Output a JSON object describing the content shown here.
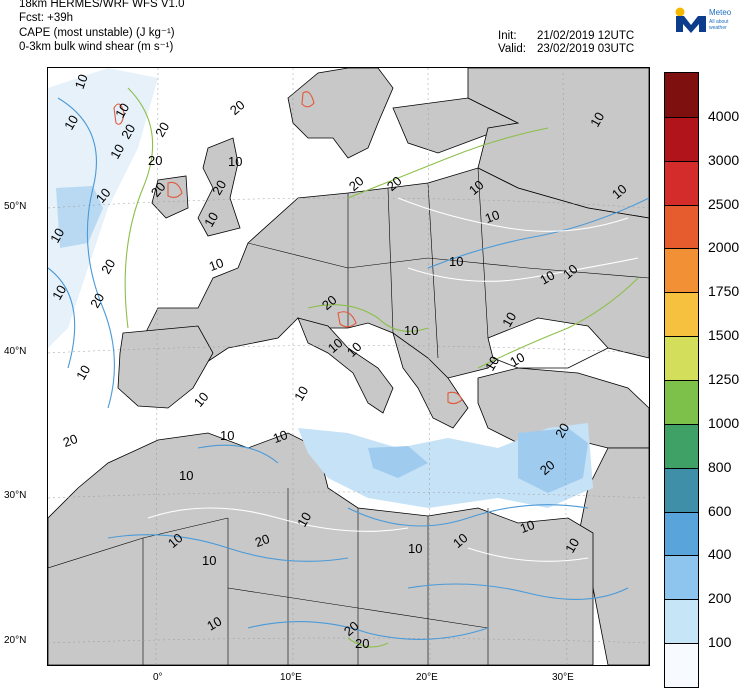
{
  "header": {
    "model": "18km HERMES/WRF WFS V1.0",
    "forecast": "Fcst: +39h",
    "field1": "CAPE (most unstable) (J kg⁻¹)",
    "field2": "0-3km bulk wind shear (m s⁻¹)",
    "init_label": "Init:",
    "init_value": "21/02/2019 12UTC",
    "valid_label": "Valid:",
    "valid_value": "23/02/2019 03UTC"
  },
  "logo": {
    "name": "Meteo",
    "tagline": "All about weather",
    "icon": "meteo-logo-icon"
  },
  "map": {
    "lat_labels": [
      "50°N",
      "40°N",
      "30°N",
      "20°N"
    ],
    "lon_labels": [
      "0°",
      "10°E",
      "20°E",
      "30°E"
    ],
    "contour_labels": [
      "10",
      "10",
      "20",
      "10",
      "20",
      "20",
      "20",
      "10",
      "10",
      "20",
      "20",
      "10",
      "10",
      "20",
      "10",
      "20",
      "10",
      "20",
      "10",
      "10",
      "10",
      "10",
      "10",
      "10",
      "10",
      "20",
      "10",
      "10",
      "20",
      "10",
      "10",
      "10",
      "10",
      "10",
      "20",
      "20",
      "10",
      "10",
      "10",
      "10",
      "10",
      "10",
      "10",
      "10",
      "10",
      "10",
      "20",
      "10",
      "20",
      "10",
      "10",
      "10",
      "20",
      "20"
    ],
    "colors": {
      "land": "#c8c8c8",
      "sea": "#ffffff",
      "coast": "#000000",
      "shear_20": "#8cbf4a",
      "shear_10": "#4a9ad8",
      "cape_low": "#dcecf8",
      "cape_mid": "#a6cff0",
      "cape_red": "#e05a3c"
    }
  },
  "colorbar": {
    "labels": [
      "4000",
      "3000",
      "2500",
      "2000",
      "1750",
      "1500",
      "1250",
      "1000",
      "800",
      "600",
      "400",
      "200",
      "100"
    ],
    "colors": [
      "#f7fbff",
      "#c6e5f7",
      "#8ec5ef",
      "#5aa4dc",
      "#3f8fa9",
      "#3fa166",
      "#7dc14a",
      "#d3df5a",
      "#f5c13e",
      "#f29036",
      "#e65c2e",
      "#d42b2b",
      "#b1151b",
      "#7e1010"
    ]
  }
}
